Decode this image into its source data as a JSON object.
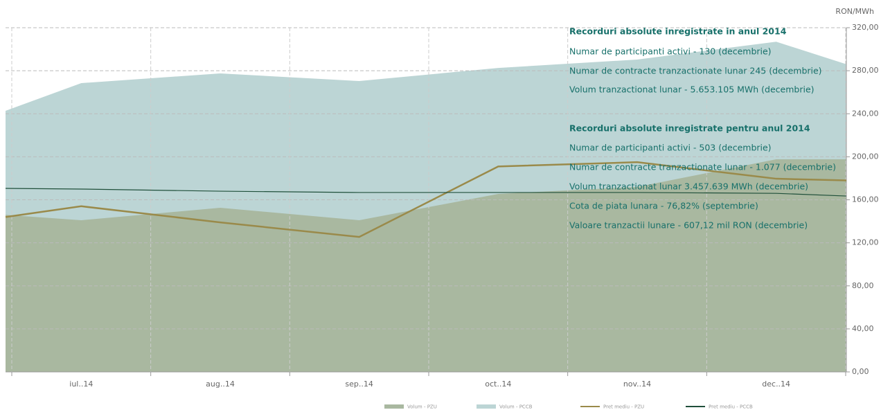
{
  "chart_data": {
    "type": "area_line",
    "y_label": "RON/MWh",
    "categories": [
      null,
      "iul..14",
      "aug..14",
      "sep..14",
      "oct..14",
      "nov..14",
      "dec..14",
      null
    ],
    "series": [
      {
        "name": "Volum - PCCB",
        "kind": "area",
        "color": "#bcd5d5",
        "values": [
          242.7,
          268.5,
          277.5,
          270.4,
          282.6,
          290.4,
          307,
          286
        ]
      },
      {
        "name": "Volum - PZU",
        "kind": "area",
        "color": "#a9b8a0",
        "values": [
          146,
          141,
          152.6,
          141,
          165.5,
          172,
          197.7,
          197.7
        ]
      },
      {
        "name": "Pret mediu - PZU",
        "kind": "line",
        "color": "#9a8a4a",
        "values": [
          144,
          154,
          139,
          125.5,
          191,
          195,
          179.6,
          178
        ]
      },
      {
        "name": "Pret mediu - PCCB",
        "kind": "line",
        "color": "#1f4f3a",
        "values": [
          170.6,
          170,
          168,
          166.8,
          166.8,
          166.8,
          166,
          163.5
        ]
      }
    ],
    "legend_order": [
      1,
      0,
      2,
      3
    ],
    "ylim": [
      0,
      320
    ],
    "yticks": [
      {
        "value": 0,
        "label": "0,00"
      },
      {
        "value": 40,
        "label": "40,00"
      },
      {
        "value": 80,
        "label": "80,00"
      },
      {
        "value": 120,
        "label": "120,00"
      },
      {
        "value": 160,
        "label": "160,00"
      },
      {
        "value": 200,
        "label": "200,00"
      },
      {
        "value": 240,
        "label": "240,00"
      },
      {
        "value": 280,
        "label": "280,00"
      },
      {
        "value": 320,
        "label": "320,00"
      }
    ],
    "grid": true,
    "annotations": [
      {
        "title": "Recorduri absolute inregistrate in anul 2014",
        "items": [
          "Numar de participanti activi - 130 (decembrie)",
          "Numar de contracte tranzactionate lunar 245 (decembrie)",
          "Volum tranzactionat lunar - 5.653.105 MWh (decembrie)"
        ]
      },
      {
        "title": "Recorduri absolute inregistrate pentru anul 2014",
        "items": [
          "Numar de participanti activi - 503 (decembrie)",
          "Numar de contracte tranzactionate lunar - 1.077  (decembrie)",
          "Volum tranzactionat lunar 3.457.639 MWh (decembrie)",
          "Cota de piata lunara - 76,82% (septembrie)",
          "Valoare tranzactii lunare - 607,12 mil RON (decembrie)"
        ]
      }
    ]
  }
}
